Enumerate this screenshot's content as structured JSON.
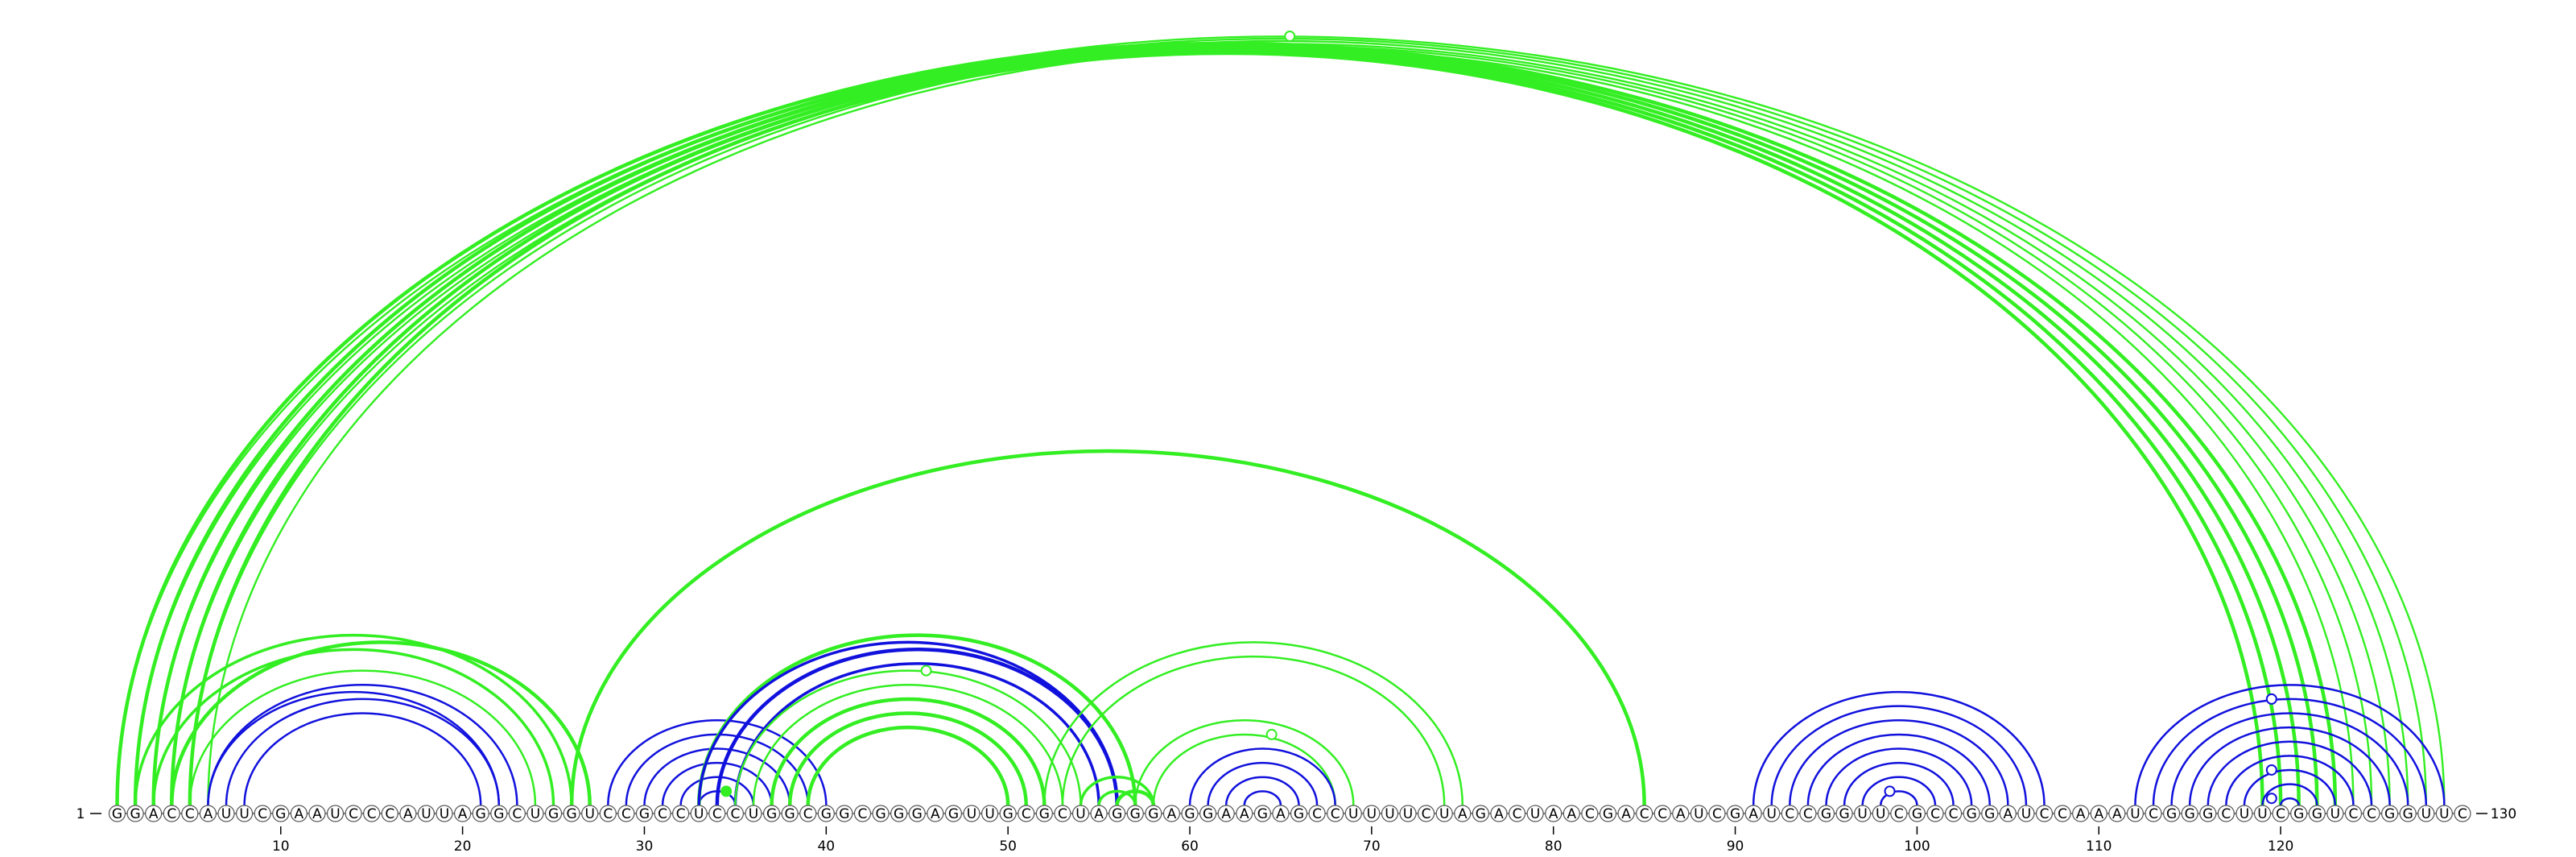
{
  "sequence": "GGACCAUUCGAAUCCCAUUAGGCUGGUCCGCCUCCUGGCGGCGGGAGUUGCGCUAGGGAGGAAGAGCCUUUUCUAGACUAACGACCAUCGAUCCGGUUCGCCGGAUCCAAAUCGGGCUUCGGUCCGGUUC",
  "start_label": "1",
  "end_label": "130",
  "ticks": [
    10,
    20,
    30,
    40,
    50,
    60,
    70,
    80,
    90,
    100,
    110,
    120
  ],
  "colors": {
    "green": "#33ee22",
    "blue": "#1111dd"
  },
  "arcs": [
    {
      "i": 1,
      "j": 129,
      "color": "green",
      "w": 2.4
    },
    {
      "i": 2,
      "j": 128,
      "color": "green",
      "w": 2.4
    },
    {
      "i": 3,
      "j": 127,
      "color": "green",
      "w": 2.4
    },
    {
      "i": 4,
      "j": 126,
      "color": "green",
      "w": 2.4
    },
    {
      "i": 5,
      "j": 125,
      "color": "green",
      "w": 2.4
    },
    {
      "i": 6,
      "j": 124,
      "color": "green",
      "w": 2.4
    },
    {
      "i": 1,
      "j": 123,
      "color": "green",
      "w": 4.5
    },
    {
      "i": 2,
      "j": 122,
      "color": "green",
      "w": 4.5
    },
    {
      "i": 3,
      "j": 121,
      "color": "green",
      "w": 4.5
    },
    {
      "i": 4,
      "j": 120,
      "color": "green",
      "w": 4.5
    },
    {
      "i": 5,
      "j": 119,
      "color": "green",
      "w": 4.5
    },
    {
      "i": 2,
      "j": 26,
      "color": "green",
      "w": 3.5
    },
    {
      "i": 3,
      "j": 25,
      "color": "green",
      "w": 3.5
    },
    {
      "i": 4,
      "j": 27,
      "color": "green",
      "w": 4.5
    },
    {
      "i": 5,
      "j": 24,
      "color": "green",
      "w": 2.5
    },
    {
      "i": 6,
      "j": 23,
      "color": "blue",
      "w": 2.5
    },
    {
      "i": 6,
      "j": 22,
      "color": "blue",
      "w": 2.5
    },
    {
      "i": 7,
      "j": 22,
      "color": "blue",
      "w": 2.5
    },
    {
      "i": 8,
      "j": 21,
      "color": "blue",
      "w": 2.5
    },
    {
      "i": 26,
      "j": 85,
      "color": "green",
      "w": 4.5
    },
    {
      "i": 28,
      "j": 40,
      "color": "blue",
      "w": 2.5
    },
    {
      "i": 29,
      "j": 39,
      "color": "blue",
      "w": 2.5
    },
    {
      "i": 30,
      "j": 38,
      "color": "blue",
      "w": 2.5
    },
    {
      "i": 31,
      "j": 37,
      "color": "blue",
      "w": 2.5
    },
    {
      "i": 32,
      "j": 36,
      "color": "blue",
      "w": 2.5
    },
    {
      "i": 33,
      "j": 35,
      "color": "blue",
      "w": 2.5
    },
    {
      "i": 33,
      "j": 57,
      "color": "green",
      "w": 4.5
    },
    {
      "i": 33,
      "j": 56,
      "color": "blue",
      "w": 3.5
    },
    {
      "i": 34,
      "j": 56,
      "color": "blue",
      "w": 4.5
    },
    {
      "i": 35,
      "j": 55,
      "color": "blue",
      "w": 3.5
    },
    {
      "i": 35,
      "j": 54,
      "color": "green",
      "w": 2.5
    },
    {
      "i": 36,
      "j": 53,
      "color": "green",
      "w": 2.5
    },
    {
      "i": 37,
      "j": 52,
      "color": "green",
      "w": 4.5
    },
    {
      "i": 38,
      "j": 51,
      "color": "green",
      "w": 4.5
    },
    {
      "i": 39,
      "j": 50,
      "color": "green",
      "w": 4.5
    },
    {
      "i": 52,
      "j": 75,
      "color": "green",
      "w": 2.5
    },
    {
      "i": 53,
      "j": 74,
      "color": "green",
      "w": 2.5
    },
    {
      "i": 54,
      "j": 58,
      "color": "green",
      "w": 3.5
    },
    {
      "i": 55,
      "j": 57,
      "color": "green",
      "w": 3.5
    },
    {
      "i": 56,
      "j": 58,
      "color": "green",
      "w": 4.5
    },
    {
      "i": 57,
      "j": 69,
      "color": "green",
      "w": 2.5
    },
    {
      "i": 58,
      "j": 68,
      "color": "green",
      "w": 2.5
    },
    {
      "i": 60,
      "j": 68,
      "color": "blue",
      "w": 2.5
    },
    {
      "i": 61,
      "j": 67,
      "color": "blue",
      "w": 2.5
    },
    {
      "i": 62,
      "j": 66,
      "color": "blue",
      "w": 2.5
    },
    {
      "i": 63,
      "j": 65,
      "color": "blue",
      "w": 2.5
    },
    {
      "i": 91,
      "j": 107,
      "color": "blue",
      "w": 2.5
    },
    {
      "i": 92,
      "j": 106,
      "color": "blue",
      "w": 2.5
    },
    {
      "i": 93,
      "j": 105,
      "color": "blue",
      "w": 2.5
    },
    {
      "i": 94,
      "j": 104,
      "color": "blue",
      "w": 2.5
    },
    {
      "i": 95,
      "j": 103,
      "color": "blue",
      "w": 2.5
    },
    {
      "i": 96,
      "j": 102,
      "color": "blue",
      "w": 2.5
    },
    {
      "i": 97,
      "j": 101,
      "color": "blue",
      "w": 2.5
    },
    {
      "i": 98,
      "j": 100,
      "color": "blue",
      "w": 2.5
    },
    {
      "i": 112,
      "j": 129,
      "color": "blue",
      "w": 2.5
    },
    {
      "i": 113,
      "j": 128,
      "color": "blue",
      "w": 2.5
    },
    {
      "i": 114,
      "j": 127,
      "color": "blue",
      "w": 2.5
    },
    {
      "i": 115,
      "j": 126,
      "color": "blue",
      "w": 2.5
    },
    {
      "i": 116,
      "j": 125,
      "color": "blue",
      "w": 2.5
    },
    {
      "i": 117,
      "j": 124,
      "color": "blue",
      "w": 2.5
    },
    {
      "i": 118,
      "j": 123,
      "color": "blue",
      "w": 2.5
    },
    {
      "i": 119,
      "j": 122,
      "color": "blue",
      "w": 2.5
    },
    {
      "i": 120,
      "j": 121,
      "color": "blue",
      "w": 2.5
    }
  ],
  "markers": [
    {
      "x": 65.5,
      "arc": "1-129",
      "fill": "none",
      "color": "green"
    },
    {
      "x": 45.5,
      "arc": "35-54",
      "fill": "none",
      "color": "green"
    },
    {
      "x": 64.5,
      "arc": "58-68",
      "fill": "none",
      "color": "green"
    },
    {
      "x": 34.5,
      "arc": "33-35",
      "fill": "solid",
      "color": "green"
    },
    {
      "x": 98.5,
      "arc": "98-100",
      "fill": "none",
      "color": "blue"
    },
    {
      "x": 119.5,
      "arc": "113-128",
      "fill": "none",
      "color": "blue"
    },
    {
      "x": 119.5,
      "arc": "118-123",
      "fill": "none",
      "color": "blue"
    },
    {
      "x": 119.5,
      "arc": "120-121",
      "fill": "none",
      "color": "blue"
    }
  ]
}
